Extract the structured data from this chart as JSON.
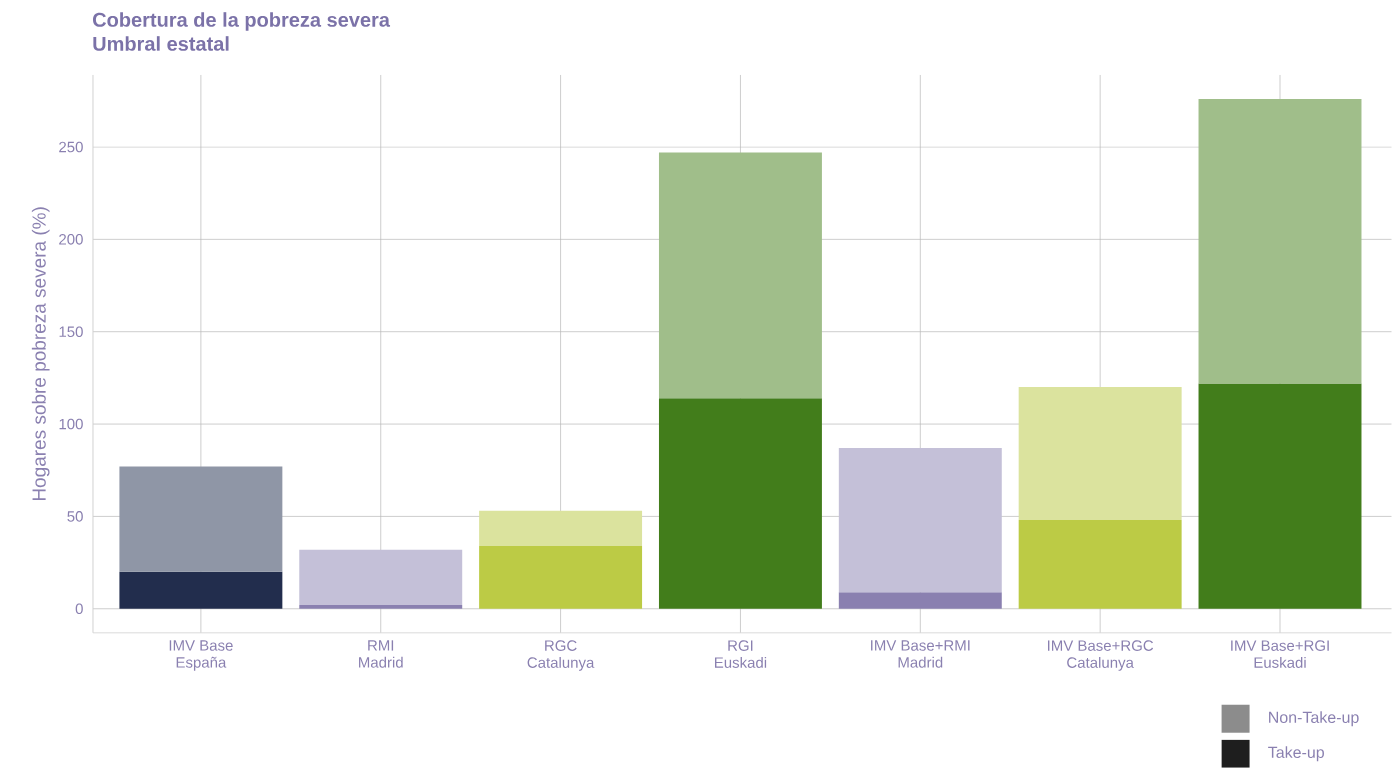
{
  "chart_data": {
    "type": "bar",
    "title": "Cobertura de la pobreza severa",
    "subtitle": "Umbral estatal",
    "ylabel": "Hogares sobre pobreza severa (%)",
    "categories": [
      "IMV Base\nEspaña",
      "RMI\nMadrid",
      "RGC\nCatalunya",
      "RGI\nEuskadi",
      "IMV Base+RMI\nMadrid",
      "IMV Base+RGC\nCatalunya",
      "IMV Base+RGI\nEuskadi"
    ],
    "stacked": true,
    "series": [
      {
        "name": "Take-up",
        "color": "#1e1e1e",
        "colors": [
          "#222d4d",
          "#8a80b0",
          "#bccb45",
          "#427d1b",
          "#8a80b0",
          "#bccb45",
          "#427d1b"
        ],
        "values": [
          20,
          2,
          34,
          114,
          9,
          48,
          122
        ]
      },
      {
        "name": "Non-Take-up",
        "color": "#8c8c8c",
        "colors": [
          "#8f96a6",
          "#c4c0d8",
          "#dbe39e",
          "#a0be8a",
          "#c4c0d8",
          "#dbe39e",
          "#a0be8a"
        ],
        "values": [
          57,
          30,
          19,
          133,
          78,
          72,
          154
        ]
      }
    ],
    "ylim": [
      -13,
      289
    ],
    "yticks": [
      0,
      50,
      100,
      150,
      200,
      250
    ],
    "grid": true,
    "legend": "bottom right"
  }
}
